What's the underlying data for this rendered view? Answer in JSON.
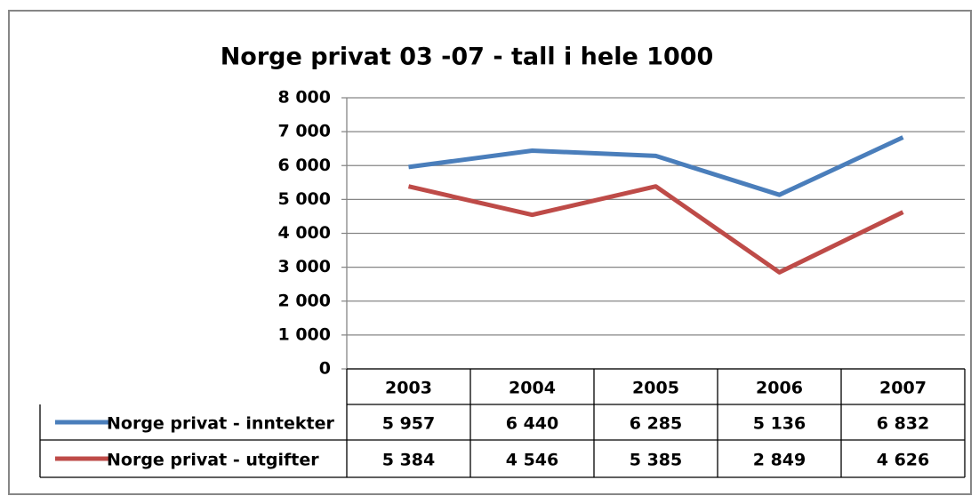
{
  "chart_data": {
    "type": "line",
    "title": "Norge privat 03 -07 - tall i hele 1000",
    "categories": [
      "2003",
      "2004",
      "2005",
      "2006",
      "2007"
    ],
    "series": [
      {
        "name": "Norge privat - inntekter",
        "color": "#4a7ebb",
        "values": [
          5957,
          6440,
          6285,
          5136,
          6832
        ],
        "value_labels": [
          "5 957",
          "6 440",
          "6 285",
          "5 136",
          "6 832"
        ]
      },
      {
        "name": "Norge privat - utgifter",
        "color": "#be4b48",
        "values": [
          5384,
          4546,
          5385,
          2849,
          4626
        ],
        "value_labels": [
          "5 384",
          "4 546",
          "5 385",
          "2 849",
          "4 626"
        ]
      }
    ],
    "ylim": [
      0,
      8000
    ],
    "yticks": [
      {
        "value": 0,
        "label": "0"
      },
      {
        "value": 1000,
        "label": "1 000"
      },
      {
        "value": 2000,
        "label": "2 000"
      },
      {
        "value": 3000,
        "label": "3 000"
      },
      {
        "value": 4000,
        "label": "4 000"
      },
      {
        "value": 5000,
        "label": "5 000"
      },
      {
        "value": 6000,
        "label": "6 000"
      },
      {
        "value": 7000,
        "label": "7 000"
      },
      {
        "value": 8000,
        "label": "8 000"
      }
    ],
    "grid": true,
    "data_table": true
  }
}
